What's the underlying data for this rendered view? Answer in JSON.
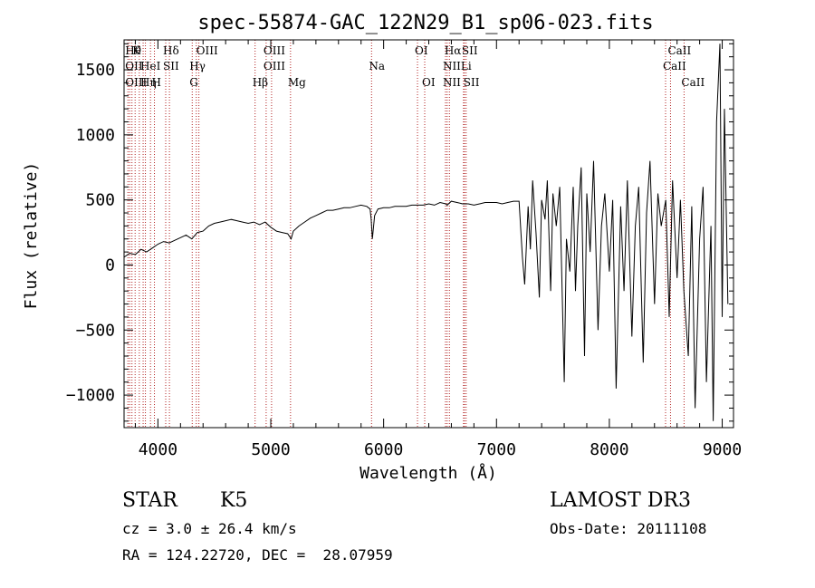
{
  "chart_data": {
    "type": "line",
    "title": "spec-55874-GAC_122N29_B1_sp06-023.fits",
    "xlabel": "Wavelength (Å)",
    "ylabel": "Flux (relative)",
    "xlim": [
      3700,
      9100
    ],
    "ylim": [
      -1250,
      1730
    ],
    "xticks": [
      4000,
      5000,
      6000,
      7000,
      8000,
      9000
    ],
    "xtick_labels": [
      "4000",
      "5000",
      "6000",
      "7000",
      "8000",
      "9000"
    ],
    "yticks": [
      -1000,
      -500,
      0,
      500,
      1000,
      1500
    ],
    "ytick_labels": [
      "−1000",
      "−500",
      "0",
      "500",
      "1000",
      "1500"
    ],
    "line_color": "#000000",
    "marker_color": "#b22222",
    "series": [
      {
        "name": "spectrum",
        "x": [
          3700,
          3750,
          3800,
          3850,
          3900,
          3950,
          4000,
          4050,
          4100,
          4150,
          4200,
          4250,
          4300,
          4350,
          4400,
          4450,
          4500,
          4550,
          4600,
          4650,
          4700,
          4750,
          4800,
          4850,
          4900,
          4950,
          5000,
          5050,
          5100,
          5150,
          5180,
          5200,
          5250,
          5300,
          5350,
          5400,
          5450,
          5500,
          5550,
          5600,
          5650,
          5700,
          5750,
          5800,
          5850,
          5880,
          5890,
          5900,
          5920,
          5950,
          6000,
          6050,
          6100,
          6150,
          6200,
          6250,
          6300,
          6350,
          6400,
          6450,
          6500,
          6550,
          6563,
          6600,
          6650,
          6700,
          6750,
          6800,
          6850,
          6900,
          6950,
          7000,
          7050,
          7100,
          7150,
          7200,
          7230,
          7250,
          7280,
          7300,
          7320,
          7350,
          7380,
          7400,
          7430,
          7450,
          7480,
          7500,
          7530,
          7560,
          7600,
          7620,
          7650,
          7680,
          7700,
          7720,
          7750,
          7780,
          7800,
          7830,
          7860,
          7900,
          7930,
          7960,
          8000,
          8030,
          8060,
          8100,
          8130,
          8160,
          8200,
          8230,
          8260,
          8300,
          8330,
          8360,
          8400,
          8430,
          8460,
          8500,
          8530,
          8560,
          8600,
          8630,
          8660,
          8700,
          8730,
          8760,
          8800,
          8830,
          8860,
          8900,
          8920,
          8950,
          8980,
          9000,
          9020,
          9050
        ],
        "y": [
          60,
          90,
          80,
          120,
          100,
          130,
          160,
          180,
          170,
          190,
          210,
          230,
          200,
          250,
          260,
          300,
          320,
          330,
          340,
          350,
          340,
          330,
          320,
          330,
          310,
          330,
          290,
          260,
          250,
          240,
          200,
          260,
          300,
          330,
          360,
          380,
          400,
          420,
          420,
          430,
          440,
          440,
          450,
          460,
          450,
          430,
          350,
          200,
          380,
          430,
          440,
          440,
          450,
          450,
          450,
          460,
          460,
          460,
          470,
          460,
          480,
          470,
          460,
          490,
          480,
          470,
          470,
          460,
          470,
          480,
          480,
          480,
          470,
          480,
          490,
          490,
          60,
          -150,
          450,
          120,
          650,
          250,
          -250,
          500,
          350,
          650,
          -200,
          550,
          300,
          600,
          -900,
          200,
          -50,
          600,
          -200,
          300,
          750,
          -700,
          550,
          100,
          800,
          -500,
          300,
          550,
          -50,
          500,
          -950,
          450,
          -200,
          650,
          -550,
          300,
          600,
          -750,
          400,
          800,
          -300,
          550,
          300,
          500,
          -400,
          650,
          -100,
          500,
          -200,
          -700,
          450,
          -1100,
          200,
          600,
          -900,
          300,
          -1200,
          1100,
          1700,
          -400,
          1200,
          -300
        ]
      }
    ],
    "lines": [
      {
        "x": 3734,
        "top": "Hθ",
        "mid": "OII",
        "low": "OIII"
      },
      {
        "x": 3750
      },
      {
        "x": 3770
      },
      {
        "x": 3798,
        "top": "K"
      },
      {
        "x": 3835
      },
      {
        "x": 3869,
        "mid": "HeI",
        "low": "Hη"
      },
      {
        "x": 3889
      },
      {
        "x": 3934
      },
      {
        "x": 3969,
        "low": "H"
      },
      {
        "x": 4069,
        "top": "Hδ",
        "mid": "SII"
      },
      {
        "x": 4102
      },
      {
        "x": 4304,
        "mid": "Hγ",
        "low": "G"
      },
      {
        "x": 4340
      },
      {
        "x": 4363,
        "top": "OIII"
      },
      {
        "x": 4861,
        "low": "Hβ"
      },
      {
        "x": 4959,
        "top": "OIII",
        "mid": "OIII"
      },
      {
        "x": 5007
      },
      {
        "x": 5175,
        "low": "Mg"
      },
      {
        "x": 5893,
        "mid": "Na"
      },
      {
        "x": 6300,
        "top": "OI"
      },
      {
        "x": 6364,
        "low": "OI"
      },
      {
        "x": 6548,
        "mid": "NII",
        "low": "NII"
      },
      {
        "x": 6563,
        "top": "Hα"
      },
      {
        "x": 6583
      },
      {
        "x": 6708,
        "mid": "Li"
      },
      {
        "x": 6716,
        "top": "SII"
      },
      {
        "x": 6731,
        "low": "SII"
      },
      {
        "x": 8498,
        "mid": "CaII"
      },
      {
        "x": 8542,
        "top": "CaII"
      },
      {
        "x": 8662,
        "low": "CaII"
      }
    ]
  },
  "info": {
    "object_class": "STAR",
    "subclass": "K5",
    "survey": "LAMOST DR3",
    "redshift": "cz = 3.0 ± 26.4 km/s",
    "obs_date": "Obs-Date: 20111108",
    "coords": "RA = 124.22720, DEC =  28.07959"
  }
}
